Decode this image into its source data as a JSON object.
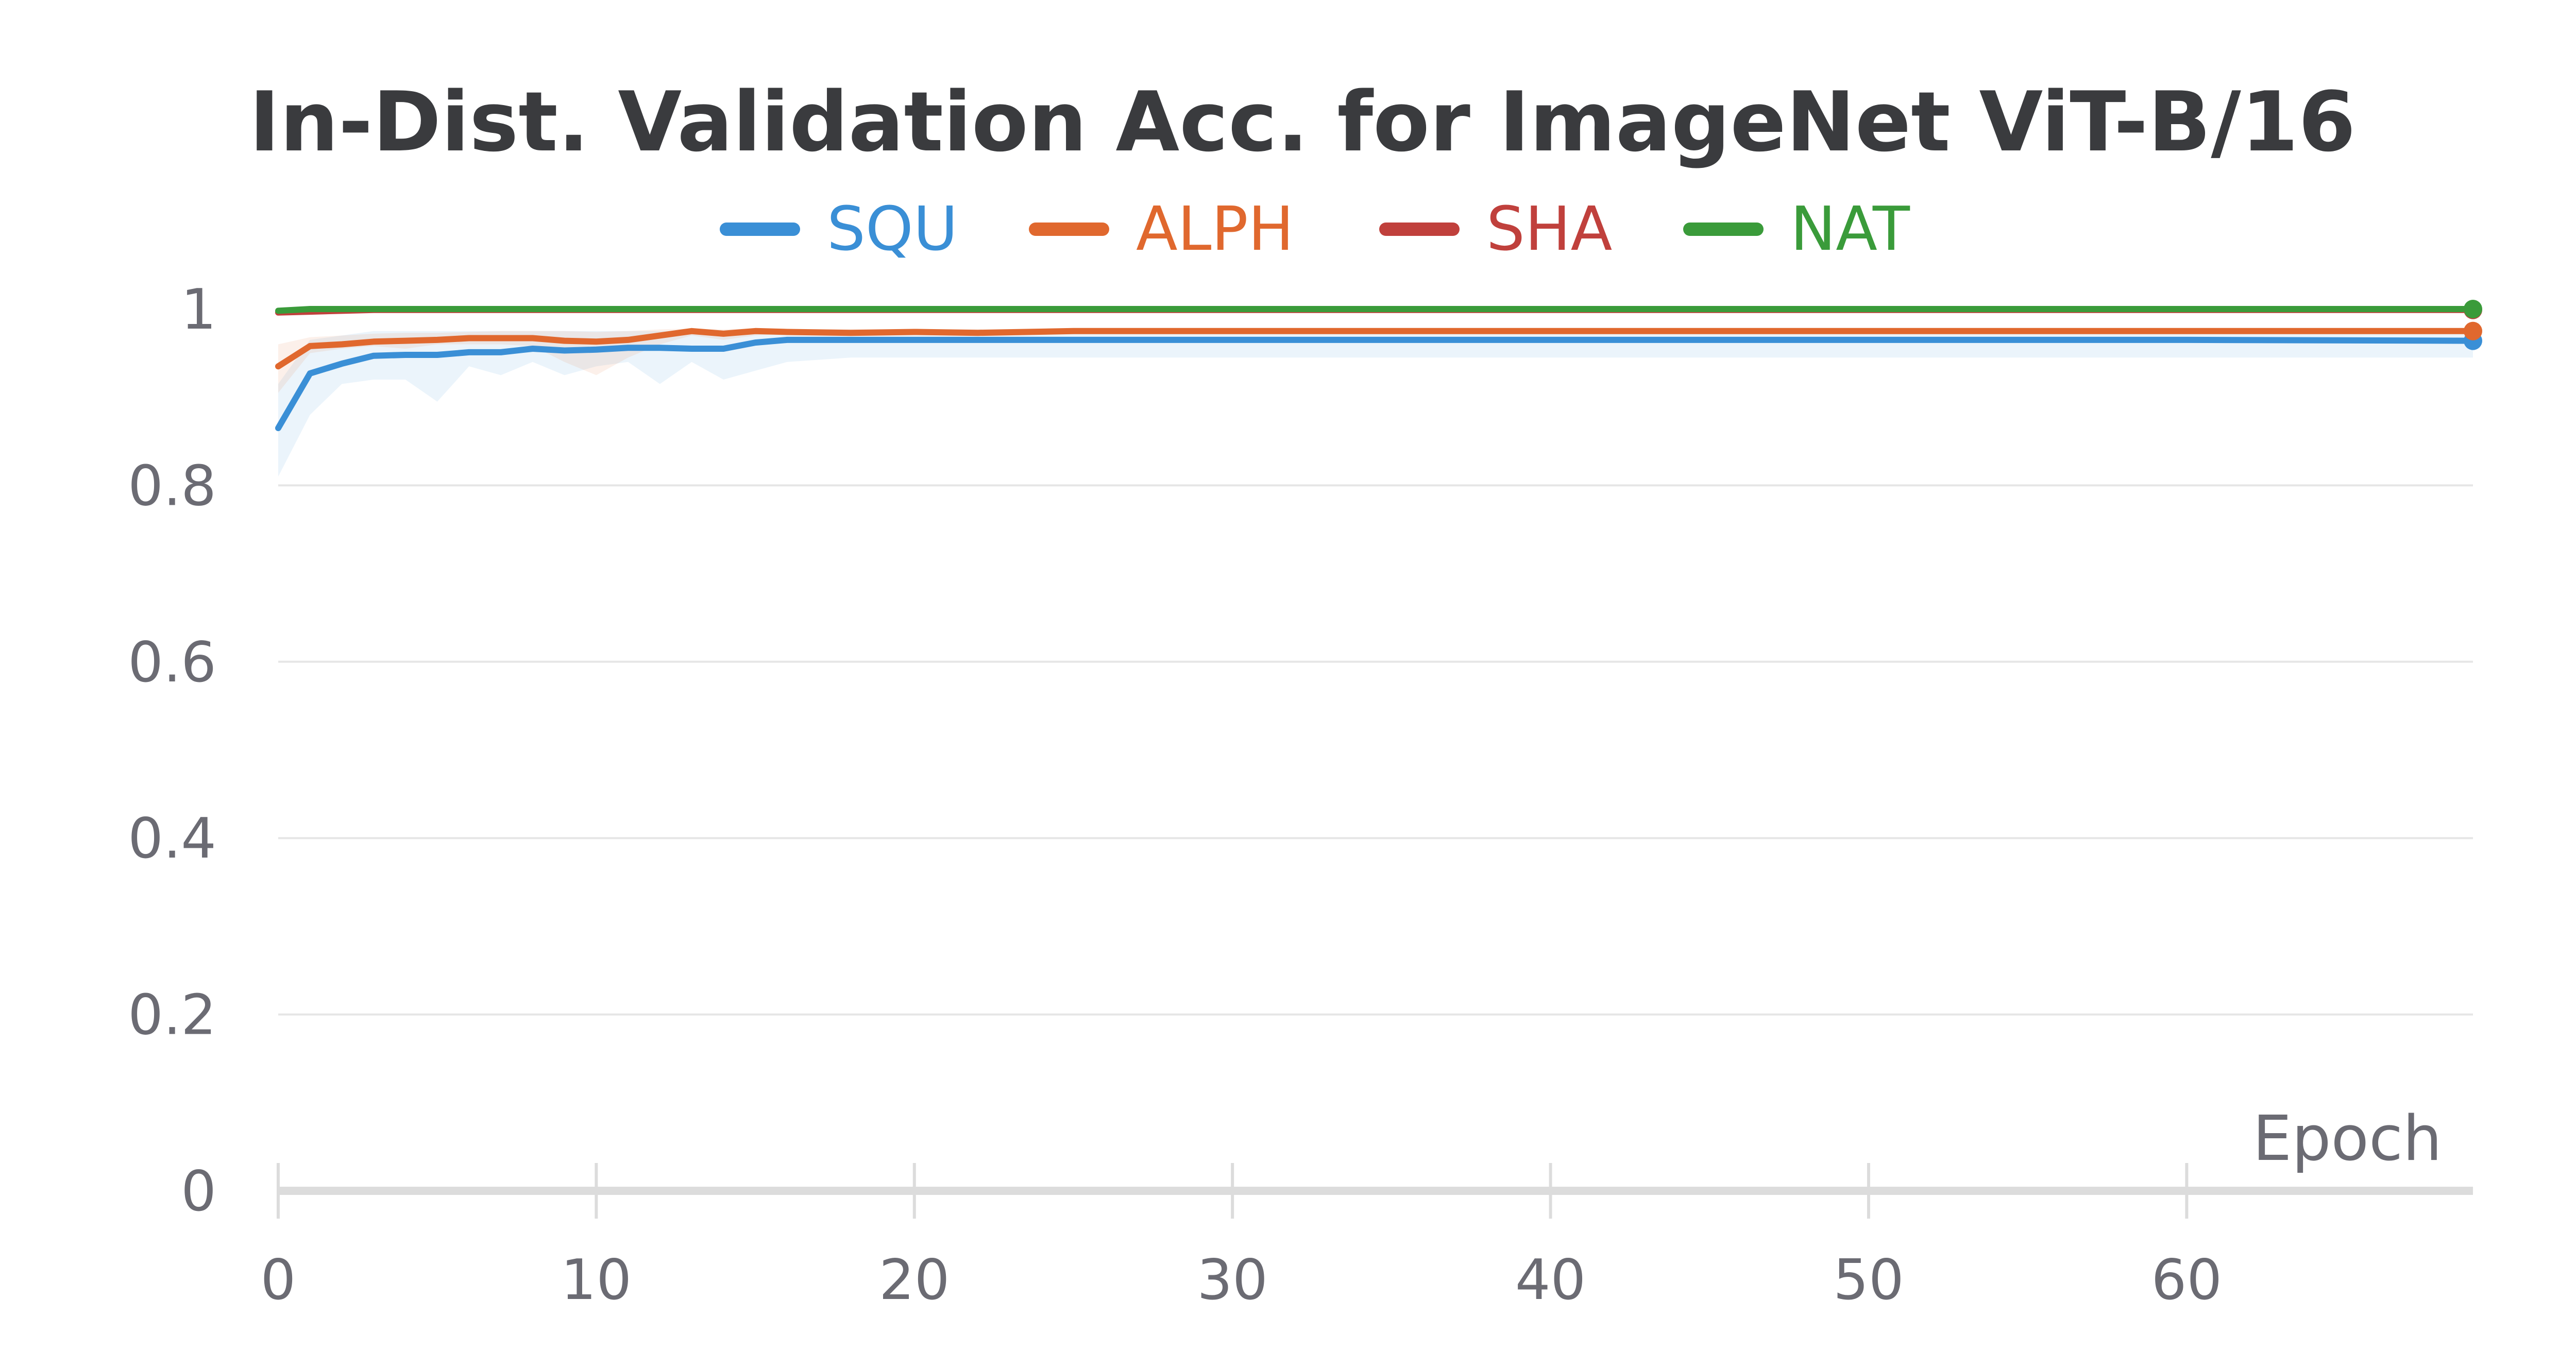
{
  "chart_data": {
    "type": "line",
    "title": "In-Dist. Validation Acc. for ImageNet ViT-B/16",
    "xlabel": "Epoch",
    "ylabel": "",
    "xlim": [
      0,
      69
    ],
    "ylim": [
      0,
      1
    ],
    "xticks": [
      0,
      10,
      20,
      30,
      40,
      50,
      60
    ],
    "yticks": [
      0,
      0.2,
      0.4,
      0.6,
      0.8,
      1
    ],
    "ytick_labels": [
      "0",
      "0.2",
      "0.4",
      "0.6",
      "0.8",
      "1"
    ],
    "grid": "horizontal",
    "legend": "top",
    "series": [
      {
        "name": "SQU",
        "color": "#3a8fd6",
        "x": [
          0,
          1,
          2,
          3,
          4,
          5,
          6,
          7,
          8,
          9,
          10,
          11,
          12,
          13,
          14,
          15,
          16,
          18,
          20,
          25,
          30,
          40,
          50,
          60,
          69
        ],
        "y": [
          0.865,
          0.927,
          0.938,
          0.947,
          0.948,
          0.948,
          0.951,
          0.951,
          0.955,
          0.953,
          0.954,
          0.956,
          0.956,
          0.955,
          0.955,
          0.962,
          0.965,
          0.965,
          0.965,
          0.965,
          0.965,
          0.965,
          0.965,
          0.965,
          0.964
        ],
        "band_low": [
          0.81,
          0.88,
          0.915,
          0.92,
          0.92,
          0.895,
          0.935,
          0.925,
          0.94,
          0.925,
          0.935,
          0.94,
          0.915,
          0.94,
          0.92,
          0.93,
          0.94,
          0.945,
          0.945,
          0.945,
          0.945,
          0.945,
          0.945,
          0.945,
          0.945
        ],
        "band_high": [
          0.915,
          0.965,
          0.97,
          0.975,
          0.975,
          0.975,
          0.975,
          0.975,
          0.975,
          0.975,
          0.975,
          0.975,
          0.975,
          0.975,
          0.975,
          0.975,
          0.975,
          0.975,
          0.975,
          0.975,
          0.975,
          0.975,
          0.975,
          0.975,
          0.975
        ]
      },
      {
        "name": "ALPH",
        "color": "#e0682e",
        "x": [
          0,
          1,
          2,
          3,
          4,
          5,
          6,
          7,
          8,
          9,
          10,
          11,
          12,
          13,
          14,
          15,
          16,
          18,
          20,
          22,
          25,
          30,
          40,
          50,
          60,
          69
        ],
        "y": [
          0.935,
          0.958,
          0.96,
          0.963,
          0.964,
          0.965,
          0.967,
          0.967,
          0.967,
          0.964,
          0.963,
          0.965,
          0.97,
          0.975,
          0.972,
          0.975,
          0.974,
          0.973,
          0.974,
          0.973,
          0.975,
          0.975,
          0.975,
          0.975,
          0.975,
          0.975
        ],
        "band_low": [
          0.905,
          0.95,
          0.955,
          0.958,
          0.955,
          0.96,
          0.96,
          0.96,
          0.958,
          0.94,
          0.925,
          0.945,
          0.96,
          0.97,
          0.965,
          0.97,
          0.972,
          0.972,
          0.972,
          0.972,
          0.972,
          0.972,
          0.972,
          0.972,
          0.972,
          0.972
        ],
        "band_high": [
          0.96,
          0.968,
          0.97,
          0.972,
          0.973,
          0.973,
          0.974,
          0.975,
          0.975,
          0.975,
          0.974,
          0.975,
          0.977,
          0.978,
          0.977,
          0.978,
          0.977,
          0.977,
          0.977,
          0.977,
          0.978,
          0.978,
          0.978,
          0.978,
          0.978,
          0.978
        ]
      },
      {
        "name": "SHA",
        "color": "#c0403c",
        "x": [
          0,
          1,
          2,
          3,
          4,
          10,
          20,
          30,
          40,
          50,
          60,
          69
        ],
        "y": [
          0.996,
          0.997,
          0.998,
          0.999,
          0.999,
          0.999,
          0.999,
          0.999,
          0.999,
          0.999,
          0.999,
          0.999
        ]
      },
      {
        "name": "NAT",
        "color": "#3a9b3a",
        "x": [
          0,
          1,
          2,
          3,
          10,
          20,
          30,
          40,
          50,
          60,
          69
        ],
        "y": [
          0.998,
          1.0,
          1.0,
          1.0,
          1.0,
          1.0,
          1.0,
          1.0,
          1.0,
          1.0,
          1.0
        ]
      }
    ]
  }
}
